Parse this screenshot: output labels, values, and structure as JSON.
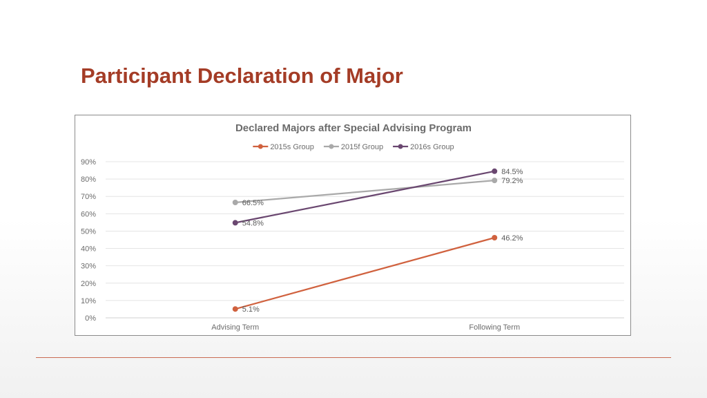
{
  "slide": {
    "title": "Participant Declaration of Major"
  },
  "colors": {
    "title": "#a43c26",
    "divider": "#c96a52"
  },
  "chart_data": {
    "type": "line",
    "title": "Declared Majors after Special Advising Program",
    "xlabel": "",
    "ylabel": "",
    "categories": [
      "Advising Term",
      "Following Term"
    ],
    "ylim": [
      0,
      90
    ],
    "yticks": [
      "0%",
      "10%",
      "20%",
      "30%",
      "40%",
      "50%",
      "60%",
      "70%",
      "80%",
      "90%"
    ],
    "grid": true,
    "legend_position": "top",
    "series": [
      {
        "name": "2015s Group",
        "color": "#d0613e",
        "values": [
          5.1,
          46.2
        ],
        "labels": [
          "5.1%",
          "46.2%"
        ]
      },
      {
        "name": "2015f Group",
        "color": "#a9a9a9",
        "values": [
          66.5,
          79.2
        ],
        "labels": [
          "66.5%",
          "79.2%"
        ]
      },
      {
        "name": "2016s Group",
        "color": "#6a4770",
        "values": [
          54.8,
          84.5
        ],
        "labels": [
          "54.8%",
          "84.5%"
        ]
      }
    ]
  }
}
